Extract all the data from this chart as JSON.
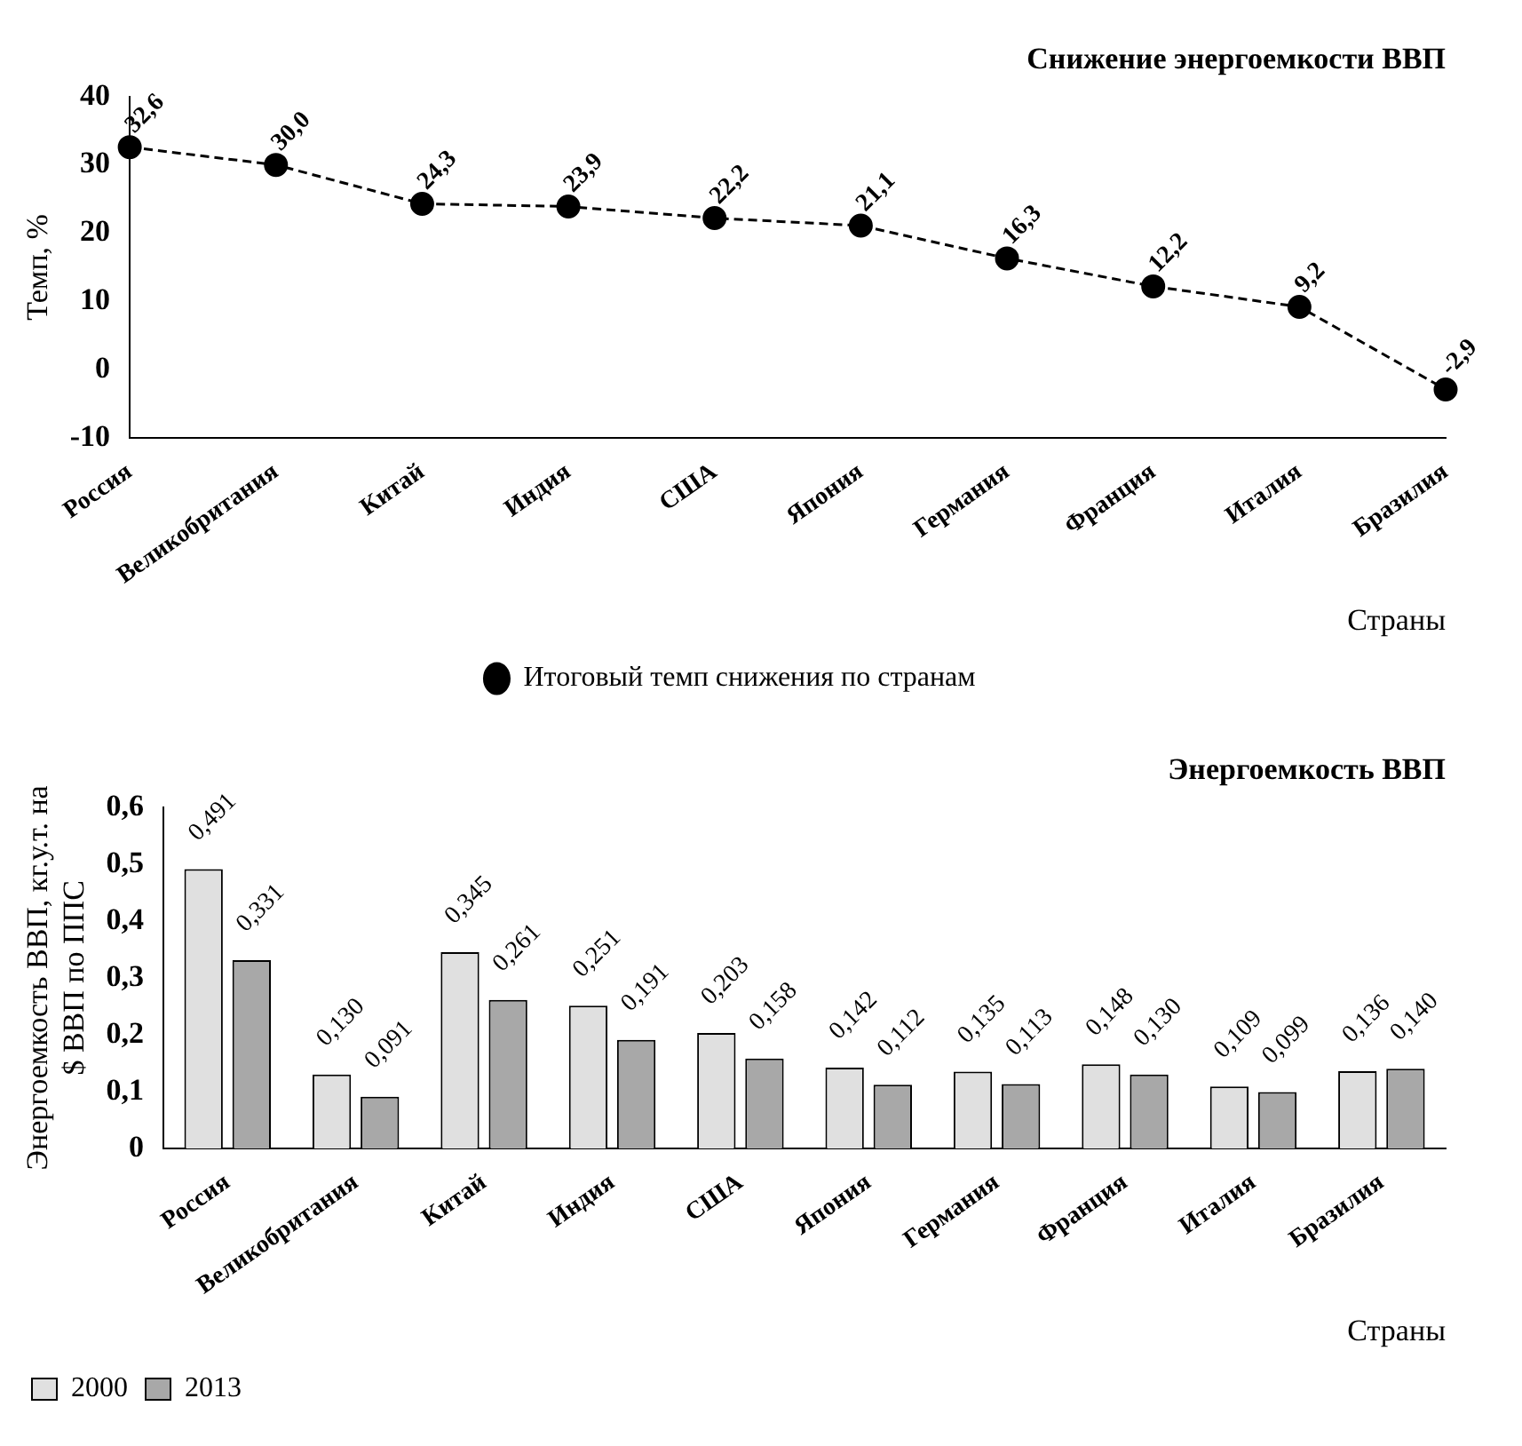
{
  "chart_data": [
    {
      "type": "line",
      "title": "Снижение энергоемкости ВВП",
      "xlabel": "Страны",
      "ylabel": "Темп, %",
      "categories": [
        "Россия",
        "Великобритания",
        "Китай",
        "Индия",
        "США",
        "Япония",
        "Германия",
        "Франция",
        "Италия",
        "Бразилия"
      ],
      "series": [
        {
          "name": "Итоговый темп снижения по странам",
          "color": "#000000",
          "values": [
            32.6,
            30.0,
            24.3,
            23.9,
            22.2,
            21.1,
            16.3,
            12.2,
            9.2,
            -2.9
          ],
          "value_labels": [
            "32,6",
            "30,0",
            "24,3",
            "23,9",
            "22,2",
            "21,1",
            "16,3",
            "12,2",
            "9,2",
            "-2,9"
          ]
        }
      ],
      "ylim": [
        -10,
        40
      ],
      "yticks": [
        -10,
        0,
        10,
        20,
        30,
        40
      ],
      "grid": false,
      "legend": "bottom",
      "marker": "circle",
      "line_style": "dashed"
    },
    {
      "type": "bar",
      "title": "Энергоемкость ВВП",
      "xlabel": "Страны",
      "ylabel": "Энергоемкость ВВП, кг.у.т. на $ ВВП по ППС",
      "categories": [
        "Россия",
        "Великобритания",
        "Китай",
        "Индия",
        "США",
        "Япония",
        "Германия",
        "Франция",
        "Италия",
        "Бразилия"
      ],
      "series": [
        {
          "name": "2000",
          "color": "#e0e0e0",
          "values": [
            0.491,
            0.13,
            0.345,
            0.251,
            0.203,
            0.142,
            0.135,
            0.148,
            0.109,
            0.136
          ],
          "value_labels": [
            "0,491",
            "0,130",
            "0,345",
            "0,251",
            "0,203",
            "0,142",
            "0,135",
            "0,148",
            "0,109",
            "0,136"
          ]
        },
        {
          "name": "2013",
          "color": "#a8a8a8",
          "values": [
            0.331,
            0.091,
            0.261,
            0.191,
            0.158,
            0.112,
            0.113,
            0.13,
            0.099,
            0.14
          ],
          "value_labels": [
            "0,331",
            "0,091",
            "0,261",
            "0,191",
            "0,158",
            "0,112",
            "0,113",
            "0,130",
            "0,099",
            "0,140"
          ]
        }
      ],
      "ylim": [
        0,
        0.6
      ],
      "yticks": [
        {
          "value": 0,
          "label": "0"
        },
        {
          "value": 0.1,
          "label": "0,1"
        },
        {
          "value": 0.2,
          "label": "0,2"
        },
        {
          "value": 0.3,
          "label": "0,3"
        },
        {
          "value": 0.4,
          "label": "0,4"
        },
        {
          "value": 0.5,
          "label": "0,5"
        },
        {
          "value": 0.6,
          "label": "0,6"
        }
      ],
      "grid": false,
      "legend": "bottom left"
    }
  ]
}
